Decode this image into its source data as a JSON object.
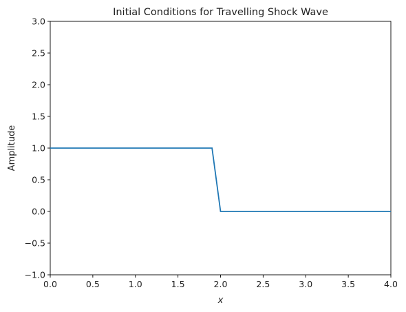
{
  "chart_data": {
    "type": "line",
    "title": "Initial Conditions for Travelling Shock Wave",
    "xlabel": "x",
    "ylabel": "Amplitude",
    "xlim": [
      0.0,
      4.0
    ],
    "ylim": [
      -1.0,
      3.0
    ],
    "xticks": [
      "0.0",
      "0.5",
      "1.0",
      "1.5",
      "2.0",
      "2.5",
      "3.0",
      "3.5",
      "4.0"
    ],
    "yticks": [
      "−1.0",
      "−0.5",
      "0.0",
      "0.5",
      "1.0",
      "1.5",
      "2.0",
      "2.5",
      "3.0"
    ],
    "grid": false,
    "series": [
      {
        "color": "#1f77b4",
        "x": [
          0.0,
          1.9,
          2.0,
          4.0
        ],
        "y": [
          1.0,
          1.0,
          0.0,
          0.0
        ]
      }
    ]
  }
}
